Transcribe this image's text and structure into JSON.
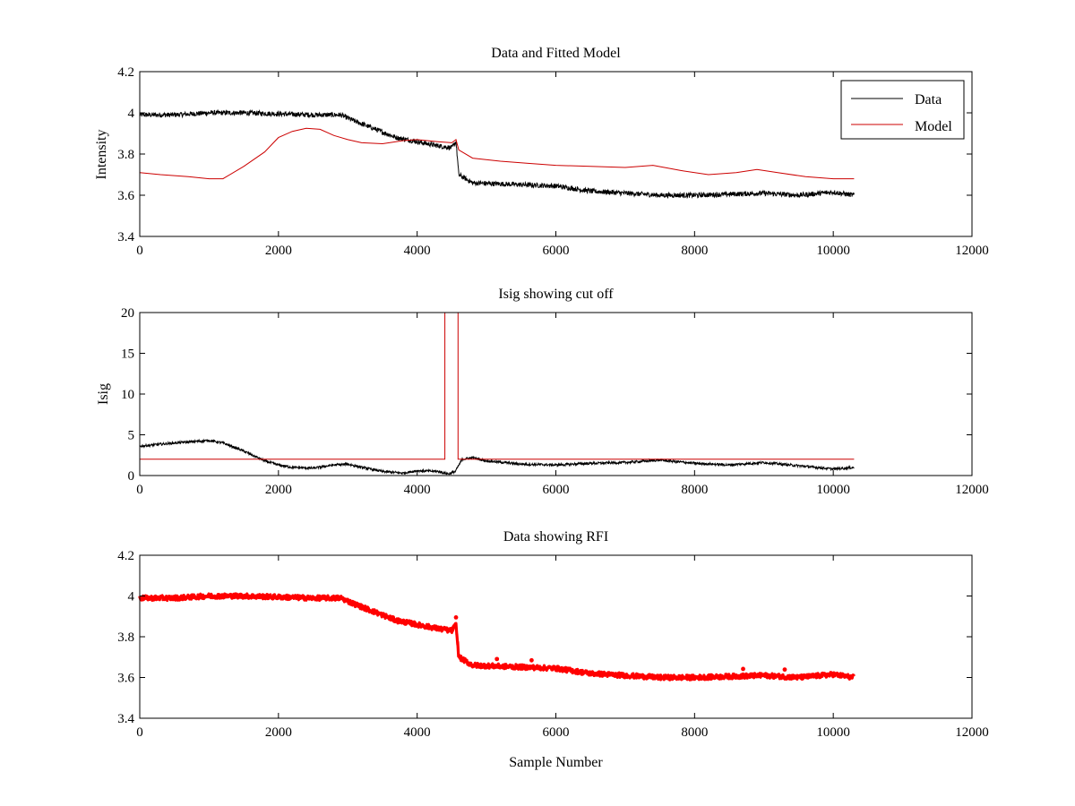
{
  "chart_data": [
    {
      "type": "line",
      "title": "Data and Fitted Model",
      "xlabel": "",
      "ylabel": "Intensity",
      "xlim": [
        0,
        12000
      ],
      "ylim": [
        3.4,
        4.2
      ],
      "xticks": [
        "0",
        "2000",
        "4000",
        "6000",
        "8000",
        "10000",
        "12000"
      ],
      "yticks": [
        "3.4",
        "3.6",
        "3.8",
        "4",
        "4.2"
      ],
      "legend": {
        "position": "top-right",
        "entries": [
          {
            "label": "Data",
            "color": "#000000"
          },
          {
            "label": "Model",
            "color": "#cc0000"
          }
        ]
      },
      "series": [
        {
          "name": "Data",
          "color": "#000000",
          "noise": 0.012,
          "x": [
            0,
            500,
            1000,
            1500,
            2000,
            2500,
            2900,
            3100,
            3400,
            3700,
            4000,
            4300,
            4500,
            4560,
            4600,
            4800,
            5200,
            5600,
            6000,
            6500,
            7000,
            7500,
            8000,
            8500,
            9000,
            9500,
            10000,
            10300
          ],
          "y": [
            3.99,
            3.99,
            4.0,
            4.0,
            3.995,
            3.99,
            3.99,
            3.96,
            3.92,
            3.88,
            3.86,
            3.84,
            3.83,
            3.86,
            3.7,
            3.66,
            3.655,
            3.65,
            3.645,
            3.62,
            3.61,
            3.6,
            3.6,
            3.605,
            3.61,
            3.6,
            3.615,
            3.6
          ]
        },
        {
          "name": "Model",
          "color": "#cc0000",
          "noise": 0.0,
          "x": [
            0,
            300,
            700,
            1000,
            1200,
            1500,
            1800,
            2000,
            2200,
            2400,
            2600,
            2800,
            3000,
            3200,
            3500,
            3800,
            4000,
            4300,
            4500,
            4560,
            4600,
            4800,
            5200,
            5600,
            6000,
            6500,
            7000,
            7400,
            7800,
            8200,
            8600,
            8900,
            9200,
            9600,
            10000,
            10300
          ],
          "y": [
            3.71,
            3.7,
            3.69,
            3.68,
            3.68,
            3.74,
            3.81,
            3.88,
            3.91,
            3.925,
            3.92,
            3.89,
            3.87,
            3.855,
            3.85,
            3.865,
            3.87,
            3.86,
            3.855,
            3.87,
            3.82,
            3.78,
            3.765,
            3.755,
            3.745,
            3.74,
            3.735,
            3.745,
            3.72,
            3.7,
            3.71,
            3.725,
            3.71,
            3.69,
            3.68,
            3.68
          ]
        }
      ]
    },
    {
      "type": "line",
      "title": "Isig showing cut off",
      "xlabel": "",
      "ylabel": "Isig",
      "xlim": [
        0,
        12000
      ],
      "ylim": [
        0,
        20
      ],
      "xticks": [
        "0",
        "2000",
        "4000",
        "6000",
        "8000",
        "10000",
        "12000"
      ],
      "yticks": [
        "0",
        "5",
        "10",
        "15",
        "20"
      ],
      "series": [
        {
          "name": "Isig",
          "color": "#000000",
          "noise": 0.15,
          "x": [
            0,
            500,
            1000,
            1200,
            1500,
            1800,
            2000,
            2200,
            2500,
            2800,
            3000,
            3200,
            3500,
            3800,
            4000,
            4300,
            4450,
            4550,
            4650,
            4800,
            5000,
            5500,
            6000,
            6500,
            7000,
            7500,
            8000,
            8500,
            9000,
            9500,
            10000,
            10300
          ],
          "y": [
            3.6,
            4.0,
            4.3,
            4.0,
            3.0,
            1.8,
            1.3,
            1.0,
            0.9,
            1.3,
            1.4,
            1.0,
            0.5,
            0.3,
            0.6,
            0.5,
            0.2,
            0.5,
            2.0,
            2.2,
            1.8,
            1.4,
            1.3,
            1.5,
            1.6,
            1.9,
            1.5,
            1.3,
            1.6,
            1.2,
            0.8,
            1.0
          ]
        },
        {
          "name": "Cut off",
          "color": "#cc0000",
          "noise": 0.0,
          "x": [
            0,
            4400,
            4400,
            4590,
            4590,
            10300
          ],
          "y": [
            2.0,
            2.0,
            20,
            20,
            2.0,
            2.0
          ]
        }
      ]
    },
    {
      "type": "scatter",
      "title": "Data showing RFI",
      "xlabel": "Sample Number",
      "ylabel": "",
      "xlim": [
        0,
        12000
      ],
      "ylim": [
        3.4,
        4.2
      ],
      "xticks": [
        "0",
        "2000",
        "4000",
        "6000",
        "8000",
        "10000",
        "12000"
      ],
      "yticks": [
        "3.4",
        "3.6",
        "3.8",
        "4",
        "4.2"
      ],
      "series": [
        {
          "name": "RFI",
          "color": "#ff0000",
          "noise": 0.012,
          "x": [
            0,
            500,
            1000,
            1500,
            2000,
            2500,
            2900,
            3100,
            3400,
            3700,
            4000,
            4300,
            4500,
            4560,
            4600,
            4800,
            5200,
            5600,
            6000,
            6500,
            7000,
            7500,
            8000,
            8500,
            9000,
            9500,
            10000,
            10300
          ],
          "y": [
            3.99,
            3.99,
            4.0,
            4.0,
            3.995,
            3.99,
            3.99,
            3.96,
            3.92,
            3.88,
            3.86,
            3.84,
            3.83,
            3.86,
            3.7,
            3.66,
            3.655,
            3.65,
            3.645,
            3.62,
            3.61,
            3.6,
            3.6,
            3.605,
            3.61,
            3.6,
            3.615,
            3.6
          ]
        }
      ]
    }
  ]
}
